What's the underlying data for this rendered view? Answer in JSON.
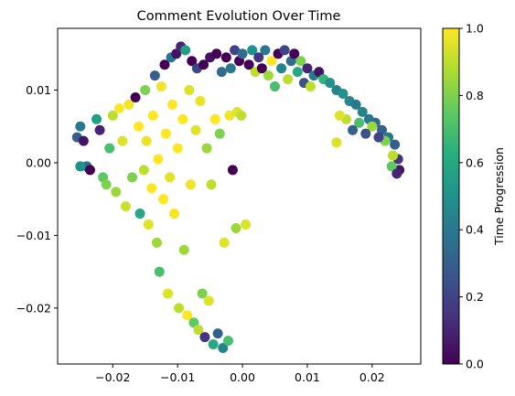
{
  "chart_data": {
    "type": "scatter",
    "title": "Comment Evolution Over Time",
    "xlabel": "",
    "ylabel": "",
    "xlim": [
      -0.0285,
      0.0275
    ],
    "ylim": [
      -0.0277,
      0.0185
    ],
    "xticks": [
      -0.02,
      -0.01,
      0.0,
      0.01,
      0.02
    ],
    "xtick_labels": [
      "−0.02",
      "−0.01",
      "0.00",
      "0.01",
      "0.02"
    ],
    "yticks": [
      -0.02,
      -0.01,
      0.0,
      0.01
    ],
    "ytick_labels": [
      "−0.02",
      "−0.01",
      "0.00",
      "0.01"
    ],
    "grid": false,
    "colormap": "viridis",
    "colorbar": {
      "label": "Time Progression",
      "range": [
        0.0,
        1.0
      ],
      "ticks": [
        0.0,
        0.2,
        0.4,
        0.6,
        0.8,
        1.0
      ],
      "tick_labels": [
        "0.0",
        "0.2",
        "0.4",
        "0.6",
        "0.8",
        "1.0"
      ]
    },
    "points": [
      {
        "x": -0.0255,
        "y": 0.0035,
        "t": 0.3
      },
      {
        "x": -0.025,
        "y": 0.005,
        "t": 0.4
      },
      {
        "x": -0.0245,
        "y": 0.003,
        "t": 0.05
      },
      {
        "x": -0.024,
        "y": -0.0005,
        "t": 0.35
      },
      {
        "x": -0.025,
        "y": -0.0005,
        "t": 0.5
      },
      {
        "x": -0.0235,
        "y": -0.001,
        "t": 0.0
      },
      {
        "x": -0.0225,
        "y": 0.006,
        "t": 0.55
      },
      {
        "x": -0.022,
        "y": 0.0045,
        "t": 0.1
      },
      {
        "x": -0.0215,
        "y": -0.002,
        "t": 0.75
      },
      {
        "x": -0.021,
        "y": -0.003,
        "t": 0.8
      },
      {
        "x": -0.0205,
        "y": 0.002,
        "t": 0.7
      },
      {
        "x": -0.02,
        "y": 0.0065,
        "t": 0.9
      },
      {
        "x": -0.0195,
        "y": -0.004,
        "t": 0.85
      },
      {
        "x": -0.019,
        "y": 0.0075,
        "t": 1.0
      },
      {
        "x": -0.0185,
        "y": 0.003,
        "t": 0.95
      },
      {
        "x": -0.018,
        "y": -0.006,
        "t": 0.92
      },
      {
        "x": -0.0175,
        "y": 0.008,
        "t": 0.98
      },
      {
        "x": -0.017,
        "y": -0.002,
        "t": 0.8
      },
      {
        "x": -0.0165,
        "y": 0.009,
        "t": 0.0
      },
      {
        "x": -0.016,
        "y": 0.005,
        "t": 1.0
      },
      {
        "x": -0.0158,
        "y": -0.007,
        "t": 0.6
      },
      {
        "x": -0.0152,
        "y": -0.001,
        "t": 0.9
      },
      {
        "x": -0.015,
        "y": 0.01,
        "t": 0.8
      },
      {
        "x": -0.0148,
        "y": 0.003,
        "t": 0.97
      },
      {
        "x": -0.0145,
        "y": -0.0085,
        "t": 0.95
      },
      {
        "x": -0.014,
        "y": -0.0035,
        "t": 1.0
      },
      {
        "x": -0.0138,
        "y": 0.0065,
        "t": 1.0
      },
      {
        "x": -0.0135,
        "y": 0.012,
        "t": 0.3
      },
      {
        "x": -0.0132,
        "y": -0.011,
        "t": 0.85
      },
      {
        "x": -0.013,
        "y": 0.0005,
        "t": 1.0
      },
      {
        "x": -0.0128,
        "y": -0.015,
        "t": 0.7
      },
      {
        "x": -0.0125,
        "y": 0.0105,
        "t": 0.98
      },
      {
        "x": -0.0122,
        "y": -0.005,
        "t": 1.0
      },
      {
        "x": -0.012,
        "y": 0.0135,
        "t": 0.0
      },
      {
        "x": -0.0118,
        "y": 0.004,
        "t": 1.0
      },
      {
        "x": -0.0115,
        "y": -0.018,
        "t": 0.95
      },
      {
        "x": -0.0112,
        "y": -0.002,
        "t": 0.96
      },
      {
        "x": -0.011,
        "y": 0.0145,
        "t": 0.4
      },
      {
        "x": -0.0108,
        "y": 0.008,
        "t": 1.0
      },
      {
        "x": -0.0105,
        "y": -0.007,
        "t": 0.99
      },
      {
        "x": -0.0102,
        "y": 0.015,
        "t": 0.05
      },
      {
        "x": -0.01,
        "y": 0.002,
        "t": 1.0
      },
      {
        "x": -0.0098,
        "y": -0.02,
        "t": 0.9
      },
      {
        "x": -0.0095,
        "y": 0.016,
        "t": 0.1
      },
      {
        "x": -0.0092,
        "y": 0.006,
        "t": 1.0
      },
      {
        "x": -0.009,
        "y": -0.012,
        "t": 0.85
      },
      {
        "x": -0.0088,
        "y": 0.0155,
        "t": 0.55
      },
      {
        "x": -0.0085,
        "y": -0.021,
        "t": 1.0
      },
      {
        "x": -0.0082,
        "y": 0.01,
        "t": 0.95
      },
      {
        "x": -0.008,
        "y": -0.003,
        "t": 0.98
      },
      {
        "x": -0.0078,
        "y": 0.014,
        "t": 0.0
      },
      {
        "x": -0.0075,
        "y": -0.022,
        "t": 0.75
      },
      {
        "x": -0.0072,
        "y": 0.0045,
        "t": 0.95
      },
      {
        "x": -0.007,
        "y": 0.013,
        "t": 0.2
      },
      {
        "x": -0.0068,
        "y": -0.023,
        "t": 0.9
      },
      {
        "x": -0.0065,
        "y": 0.0085,
        "t": 0.97
      },
      {
        "x": -0.0062,
        "y": -0.018,
        "t": 0.8
      },
      {
        "x": -0.006,
        "y": 0.0135,
        "t": 0.0
      },
      {
        "x": -0.0058,
        "y": -0.024,
        "t": 0.15
      },
      {
        "x": -0.0055,
        "y": 0.002,
        "t": 0.85
      },
      {
        "x": -0.0052,
        "y": -0.019,
        "t": 0.95
      },
      {
        "x": -0.005,
        "y": 0.0145,
        "t": 0.05
      },
      {
        "x": -0.0048,
        "y": -0.003,
        "t": 0.9
      },
      {
        "x": -0.0045,
        "y": -0.025,
        "t": 0.6
      },
      {
        "x": -0.0042,
        "y": 0.006,
        "t": 1.0
      },
      {
        "x": -0.004,
        "y": 0.015,
        "t": 0.0
      },
      {
        "x": -0.0038,
        "y": -0.0235,
        "t": 0.3
      },
      {
        "x": -0.0035,
        "y": 0.004,
        "t": 0.8
      },
      {
        "x": -0.0032,
        "y": 0.0125,
        "t": 0.35
      },
      {
        "x": -0.003,
        "y": -0.0255,
        "t": 0.45
      },
      {
        "x": -0.0028,
        "y": -0.011,
        "t": 0.95
      },
      {
        "x": -0.0025,
        "y": 0.0145,
        "t": 0.0
      },
      {
        "x": -0.0022,
        "y": -0.0245,
        "t": 0.7
      },
      {
        "x": -0.002,
        "y": 0.0065,
        "t": 0.98
      },
      {
        "x": -0.0018,
        "y": 0.013,
        "t": 0.4
      },
      {
        "x": -0.0015,
        "y": -0.001,
        "t": 0.0
      },
      {
        "x": -0.0012,
        "y": 0.0155,
        "t": 0.2
      },
      {
        "x": -0.001,
        "y": -0.009,
        "t": 0.85
      },
      {
        "x": -0.0008,
        "y": 0.007,
        "t": 0.95
      },
      {
        "x": -0.0005,
        "y": 0.014,
        "t": 0.0
      },
      {
        "x": -0.0002,
        "y": 0.0065,
        "t": 0.9
      },
      {
        "x": 0.0,
        "y": 0.015,
        "t": 0.35
      },
      {
        "x": 0.0005,
        "y": -0.0085,
        "t": 0.95
      },
      {
        "x": 0.001,
        "y": 0.0135,
        "t": 0.0
      },
      {
        "x": 0.0015,
        "y": 0.0155,
        "t": 0.5
      },
      {
        "x": 0.002,
        "y": 0.0125,
        "t": 0.9
      },
      {
        "x": 0.0025,
        "y": 0.0145,
        "t": 0.15
      },
      {
        "x": 0.003,
        "y": 0.013,
        "t": 0.0
      },
      {
        "x": 0.0035,
        "y": 0.0155,
        "t": 0.4
      },
      {
        "x": 0.004,
        "y": 0.012,
        "t": 0.85
      },
      {
        "x": 0.0045,
        "y": 0.014,
        "t": 1.0
      },
      {
        "x": 0.005,
        "y": 0.0105,
        "t": 0.7
      },
      {
        "x": 0.0055,
        "y": 0.015,
        "t": 0.0
      },
      {
        "x": 0.006,
        "y": 0.013,
        "t": 0.45
      },
      {
        "x": 0.0065,
        "y": 0.0155,
        "t": 0.2
      },
      {
        "x": 0.007,
        "y": 0.0115,
        "t": 0.9
      },
      {
        "x": 0.0075,
        "y": 0.014,
        "t": 0.35
      },
      {
        "x": 0.008,
        "y": 0.015,
        "t": 0.0
      },
      {
        "x": 0.0085,
        "y": 0.0125,
        "t": 0.6
      },
      {
        "x": 0.009,
        "y": 0.014,
        "t": 0.8
      },
      {
        "x": 0.0095,
        "y": 0.011,
        "t": 0.25
      },
      {
        "x": 0.01,
        "y": 0.013,
        "t": 0.1
      },
      {
        "x": 0.0105,
        "y": 0.0105,
        "t": 0.9
      },
      {
        "x": 0.011,
        "y": 0.012,
        "t": 0.4
      },
      {
        "x": 0.0118,
        "y": 0.0125,
        "t": 0.05
      },
      {
        "x": 0.0125,
        "y": 0.0115,
        "t": 0.65
      },
      {
        "x": 0.0135,
        "y": 0.011,
        "t": 0.5
      },
      {
        "x": 0.0145,
        "y": 0.01,
        "t": 0.45
      },
      {
        "x": 0.0155,
        "y": 0.0095,
        "t": 0.5
      },
      {
        "x": 0.0165,
        "y": 0.0085,
        "t": 0.45
      },
      {
        "x": 0.0175,
        "y": 0.008,
        "t": 0.4
      },
      {
        "x": 0.0185,
        "y": 0.007,
        "t": 0.45
      },
      {
        "x": 0.0195,
        "y": 0.006,
        "t": 0.4
      },
      {
        "x": 0.0205,
        "y": 0.0055,
        "t": 0.35
      },
      {
        "x": 0.0215,
        "y": 0.0045,
        "t": 0.3
      },
      {
        "x": 0.0225,
        "y": 0.0035,
        "t": 0.4
      },
      {
        "x": 0.0235,
        "y": 0.0025,
        "t": 0.3
      },
      {
        "x": 0.024,
        "y": 0.0005,
        "t": 0.15
      },
      {
        "x": 0.0242,
        "y": -0.001,
        "t": 0.05
      },
      {
        "x": 0.0232,
        "y": 0.001,
        "t": 0.9
      },
      {
        "x": 0.022,
        "y": 0.003,
        "t": 0.8
      },
      {
        "x": 0.021,
        "y": 0.0035,
        "t": 0.2
      },
      {
        "x": 0.02,
        "y": 0.005,
        "t": 0.85
      },
      {
        "x": 0.019,
        "y": 0.004,
        "t": 0.25
      },
      {
        "x": 0.018,
        "y": 0.0055,
        "t": 0.7
      },
      {
        "x": 0.017,
        "y": 0.0045,
        "t": 0.3
      },
      {
        "x": 0.016,
        "y": 0.006,
        "t": 0.9
      },
      {
        "x": 0.015,
        "y": 0.0065,
        "t": 0.95
      },
      {
        "x": 0.0145,
        "y": 0.0028,
        "t": 0.95
      },
      {
        "x": 0.023,
        "y": -0.0005,
        "t": 0.75
      },
      {
        "x": 0.0238,
        "y": -0.0015,
        "t": 0.1
      }
    ]
  }
}
